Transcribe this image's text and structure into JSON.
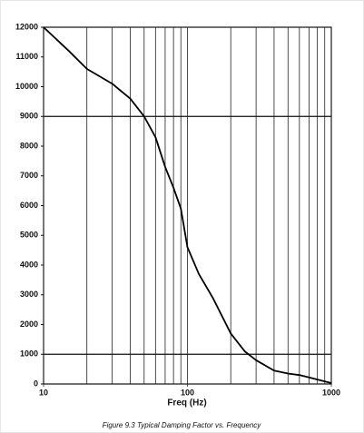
{
  "chart_data": {
    "type": "line",
    "xlabel": "Freq (Hz)",
    "caption": "Figure 9.3 Typical Damping Factor vs. Frequency",
    "xlog": true,
    "xlim": [
      10,
      1000
    ],
    "xticks": [
      10,
      100,
      1000
    ],
    "ylim": [
      0,
      12000
    ],
    "yticks": [
      0,
      1000,
      2000,
      3000,
      4000,
      5000,
      6000,
      7000,
      8000,
      9000,
      10000,
      11000,
      12000
    ],
    "xgrid": [
      20,
      30,
      40,
      50,
      60,
      70,
      80,
      90,
      200,
      300,
      400,
      500,
      600,
      700,
      800,
      900
    ],
    "ygrid": [
      1000,
      9000
    ],
    "series": [
      {
        "color": "#000000",
        "x": [
          10,
          15,
          20,
          30,
          40,
          50,
          60,
          70,
          80,
          90,
          100,
          120,
          150,
          200,
          250,
          300,
          400,
          500,
          600,
          700,
          800,
          1000
        ],
        "values": [
          12000,
          11200,
          10600,
          10100,
          9600,
          9000,
          8300,
          7300,
          6600,
          5900,
          4600,
          3700,
          2900,
          1700,
          1100,
          800,
          450,
          350,
          300,
          220,
          150,
          30
        ]
      }
    ]
  }
}
